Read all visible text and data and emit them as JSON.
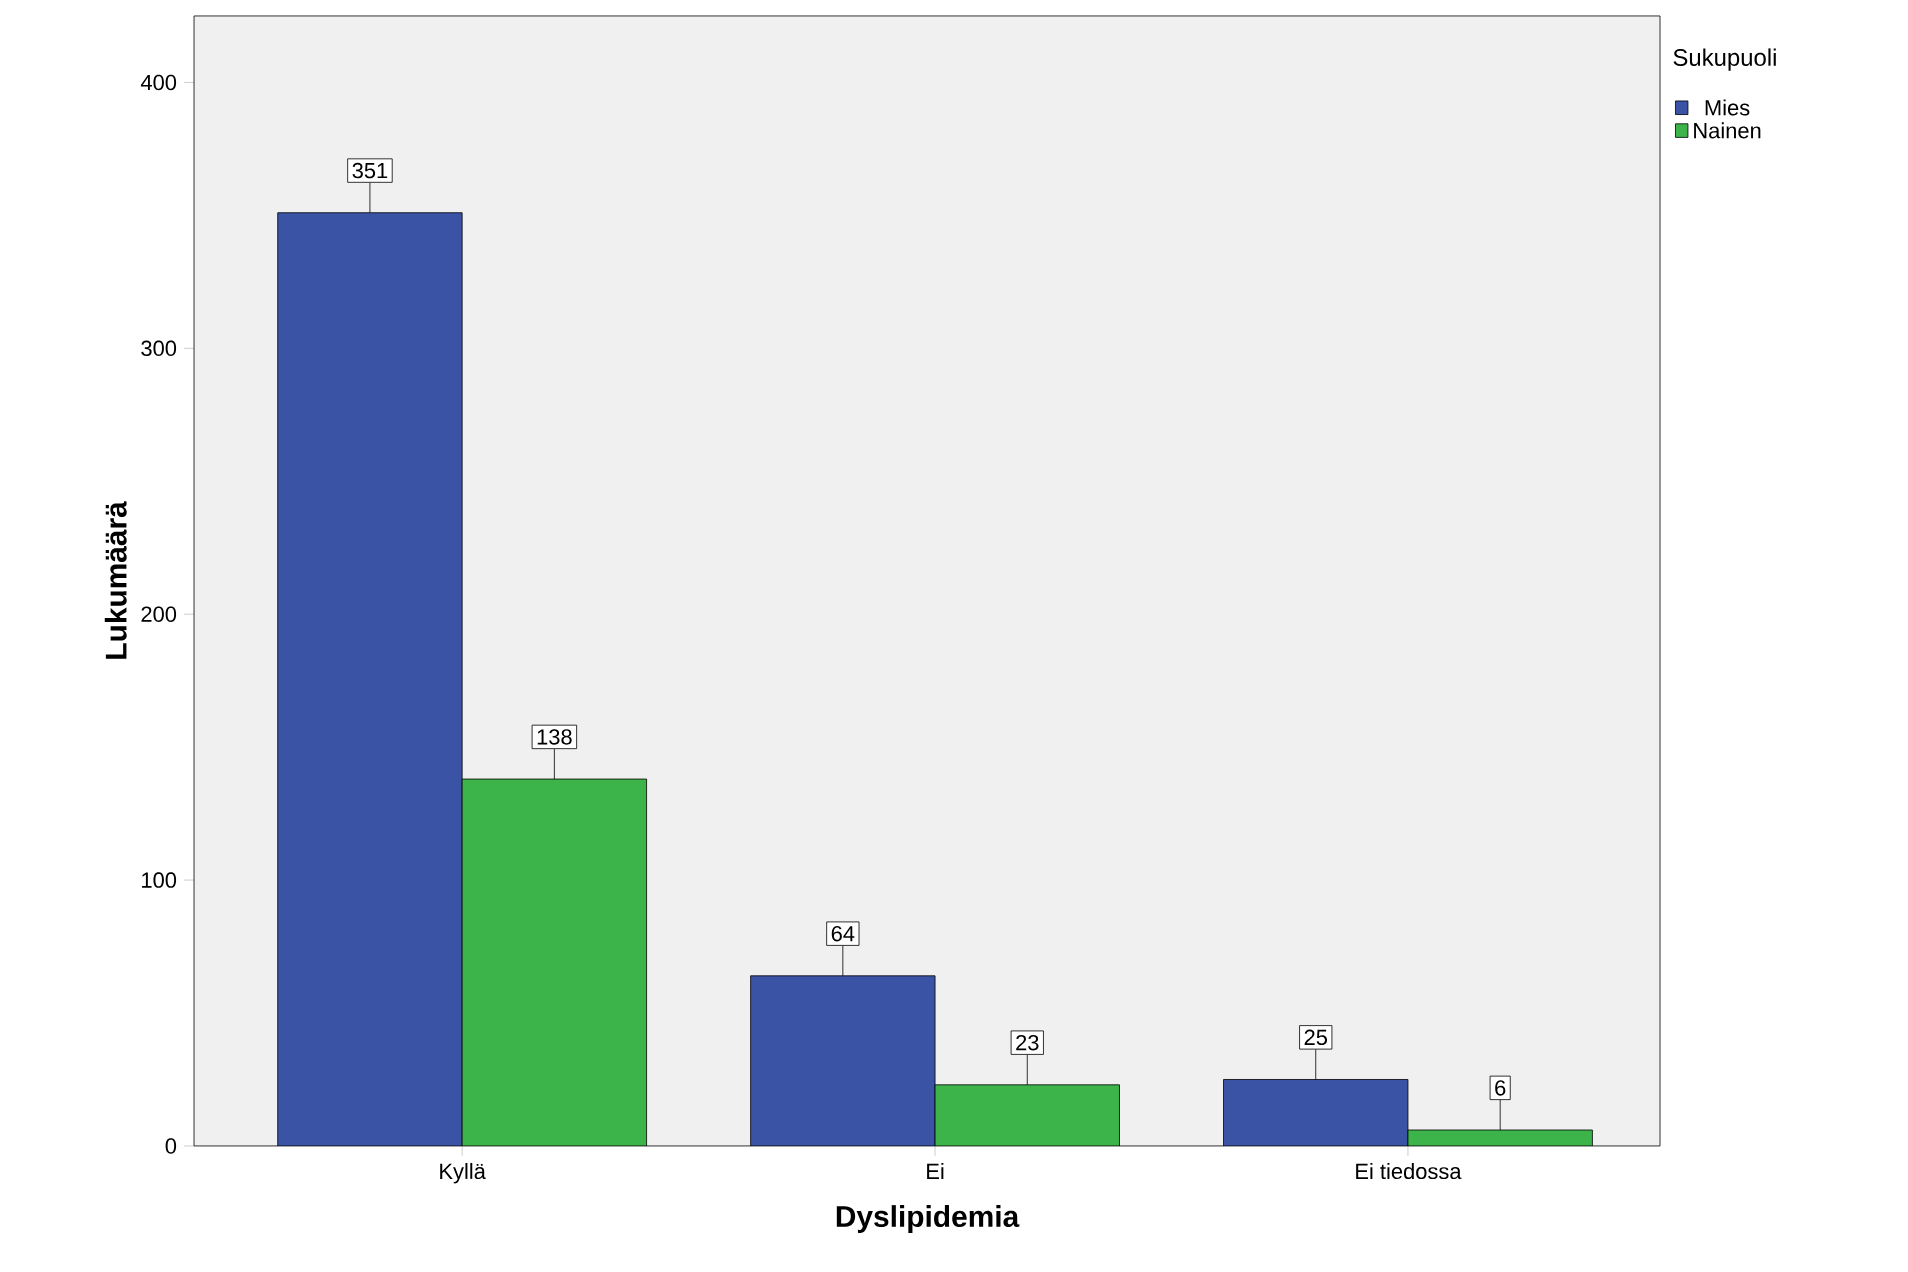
{
  "chart_data": {
    "type": "bar",
    "xlabel": "Dyslipidemia",
    "ylabel": "Lukumäärä",
    "legend_title": "Sukupuoli",
    "categories": [
      "Kyllä",
      "Ei",
      "Ei tiedossa"
    ],
    "series": [
      {
        "name": "Mies",
        "color": "#3a53a4",
        "values": [
          351,
          64,
          25
        ]
      },
      {
        "name": "Nainen",
        "color": "#3cb44a",
        "values": [
          138,
          23,
          6
        ]
      }
    ],
    "ylim": [
      0,
      425
    ],
    "yticks": [
      0,
      100,
      200,
      300,
      400
    ],
    "data_labels": true,
    "legend": "top right",
    "grid": false
  }
}
